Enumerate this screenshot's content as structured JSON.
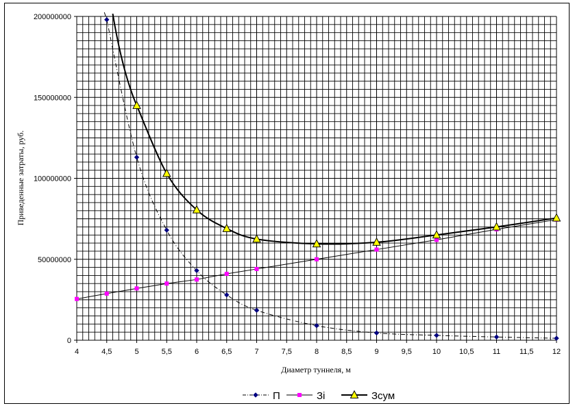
{
  "chart_data": {
    "type": "line",
    "xlabel": "Диаметр туннеля, м",
    "ylabel": "Приведенные затраты, руб.",
    "xlim": [
      4,
      12
    ],
    "ylim": [
      0,
      200000000
    ],
    "x_ticks": [
      "4",
      "4,5",
      "5",
      "5,5",
      "6",
      "6,5",
      "7",
      "7,5",
      "8",
      "8,5",
      "9",
      "9,5",
      "10",
      "10,5",
      "11",
      "11,5",
      "12"
    ],
    "y_ticks": [
      "0",
      "50000000",
      "100000000",
      "150000000",
      "200000000"
    ],
    "grid": true,
    "legend_position": "bottom",
    "series": [
      {
        "name": "П",
        "color": "#000080",
        "line_style": "dash-dot",
        "marker": "diamond",
        "x": [
          4.5,
          5,
          5.5,
          6,
          6.5,
          7,
          8,
          9,
          10,
          11,
          12
        ],
        "y": [
          198000000,
          113000000,
          68000000,
          43000000,
          28000000,
          18500000,
          9000000,
          4500000,
          3000000,
          2000000,
          1200000
        ]
      },
      {
        "name": "Зі",
        "color": "#ff00ff",
        "line_style": "solid",
        "marker": "square",
        "x": [
          4,
          4.5,
          5,
          5.5,
          6,
          6.5,
          7,
          8,
          9,
          10,
          11,
          12
        ],
        "y": [
          25500000,
          28800000,
          32000000,
          35000000,
          37500000,
          41000000,
          44000000,
          50000000,
          56000000,
          62000000,
          68500000,
          74500000
        ]
      },
      {
        "name": "Зсум",
        "color": "#ffff00",
        "line_style": "solid-thick",
        "marker": "triangle",
        "x": [
          5,
          5.5,
          6,
          6.5,
          7,
          8,
          9,
          10,
          11,
          12
        ],
        "y": [
          145000000,
          103000000,
          80500000,
          69000000,
          62500000,
          59500000,
          60500000,
          65000000,
          70000000,
          75500000
        ]
      }
    ]
  }
}
